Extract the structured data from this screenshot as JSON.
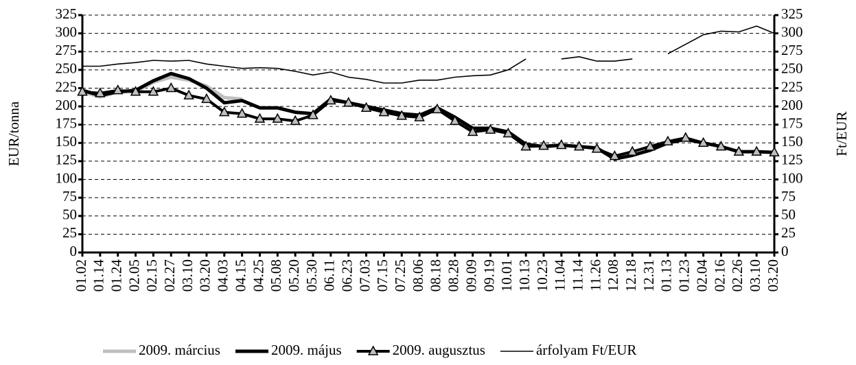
{
  "chart_data": {
    "type": "line",
    "categories": [
      "01.02",
      "01.14",
      "01.24",
      "02.05",
      "02.15",
      "02.27",
      "03.10",
      "03.20",
      "04.03",
      "04.15",
      "04.25",
      "05.08",
      "05.20",
      "05.30",
      "06.11",
      "06.23",
      "07.03",
      "07.15",
      "07.25",
      "08.06",
      "08.18",
      "08.28",
      "09.09",
      "09.19",
      "10.01",
      "10.13",
      "10.23",
      "11.04",
      "11.14",
      "11.26",
      "12.08",
      "12.18",
      "12.31",
      "01.13",
      "01.23",
      "02.04",
      "02.16",
      "02.26",
      "03.10",
      "03.20"
    ],
    "series": [
      {
        "name": "2009. március",
        "color": "#bfbfbf",
        "values": [
          220,
          213,
          220,
          220,
          233,
          240,
          236,
          228,
          212,
          210,
          null,
          null,
          null,
          null,
          null,
          null,
          null,
          null,
          null,
          null,
          null,
          null,
          null,
          null,
          null,
          null,
          null,
          null,
          null,
          null,
          null,
          null,
          null,
          null,
          null,
          null,
          null,
          null,
          null,
          null
        ]
      },
      {
        "name": "2009. május",
        "color": "#000000",
        "values": [
          222,
          215,
          220,
          222,
          235,
          245,
          238,
          225,
          205,
          208,
          198,
          198,
          192,
          190,
          210,
          205,
          200,
          195,
          190,
          188,
          198,
          185,
          170,
          170,
          165,
          148,
          145,
          147,
          145,
          143,
          128,
          133,
          140,
          150,
          155,
          150,
          145,
          138,
          138,
          137
        ]
      },
      {
        "name": "2009. augusztus",
        "color": "#000000",
        "marker": "triangle",
        "values": [
          220,
          218,
          222,
          220,
          220,
          225,
          215,
          210,
          192,
          190,
          183,
          183,
          180,
          188,
          208,
          205,
          198,
          192,
          187,
          185,
          196,
          180,
          165,
          168,
          163,
          145,
          146,
          147,
          145,
          142,
          132,
          138,
          145,
          152,
          157,
          150,
          145,
          138,
          138,
          137
        ]
      },
      {
        "name": "árfolyam Ft/EUR",
        "color": "#000000",
        "axis": "y2",
        "values": [
          255,
          255,
          258,
          260,
          263,
          262,
          263,
          258,
          255,
          252,
          253,
          252,
          248,
          243,
          247,
          240,
          237,
          232,
          232,
          236,
          236,
          240,
          242,
          243,
          250,
          265,
          null,
          265,
          268,
          262,
          262,
          265,
          null,
          272,
          285,
          298,
          303,
          302,
          310,
          300
        ]
      }
    ],
    "ylabel": "EUR/tonna",
    "y2label": "Ft/EUR",
    "ylim": [
      0,
      325
    ],
    "yticks": [
      0,
      25,
      50,
      75,
      100,
      125,
      150,
      175,
      200,
      225,
      250,
      275,
      300,
      325
    ],
    "y2lim": [
      0,
      325
    ],
    "y2ticks": [
      0,
      25,
      50,
      75,
      100,
      125,
      150,
      175,
      200,
      225,
      250,
      275,
      300,
      325
    ],
    "grid": true,
    "legend": "bottom"
  }
}
